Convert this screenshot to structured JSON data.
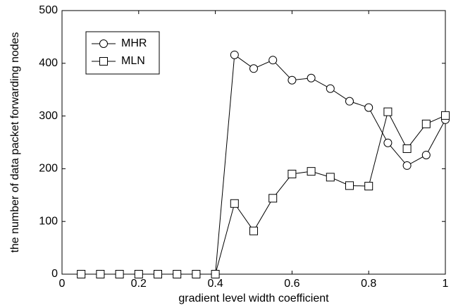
{
  "chart_data": {
    "type": "line",
    "x_label": "gradient level width coefficient",
    "y_label": "the number of data packet forwarding nodes",
    "x": [
      0.05,
      0.1,
      0.15,
      0.2,
      0.25,
      0.3,
      0.35,
      0.4,
      0.45,
      0.5,
      0.55,
      0.6,
      0.65,
      0.7,
      0.75,
      0.8,
      0.85,
      0.9,
      0.95,
      1.0
    ],
    "series": [
      {
        "name": "MHR",
        "color": "#000000",
        "marker": "circle",
        "values": [
          0,
          0,
          0,
          0,
          0,
          0,
          0,
          0,
          416,
          390,
          406,
          368,
          372,
          352,
          328,
          316,
          249,
          206,
          226,
          293
        ]
      },
      {
        "name": "MLN",
        "color": "#000000",
        "marker": "square",
        "values": [
          0,
          0,
          0,
          0,
          0,
          0,
          0,
          0,
          134,
          82,
          144,
          190,
          195,
          184,
          168,
          167,
          308,
          238,
          285,
          301
        ]
      }
    ],
    "xlim": [
      0,
      1
    ],
    "xticks": [
      0,
      0.2,
      0.4,
      0.6,
      0.8,
      1
    ],
    "ylim": [
      0,
      500
    ],
    "yticks": [
      0,
      100,
      200,
      300,
      400,
      500
    ],
    "legend": "upper left"
  }
}
